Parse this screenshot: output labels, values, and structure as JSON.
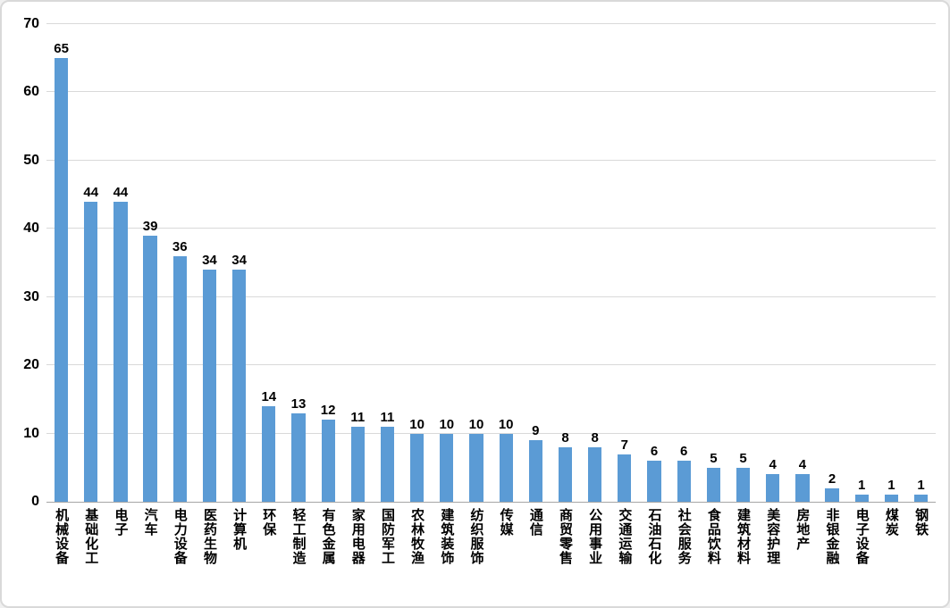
{
  "chart_data": {
    "type": "bar",
    "title": "",
    "xlabel": "",
    "ylabel": "",
    "categories": [
      "机械设备",
      "基础化工",
      "电子",
      "汽车",
      "电力设备",
      "医药生物",
      "计算机",
      "环保",
      "轻工制造",
      "有色金属",
      "家用电器",
      "国防军工",
      "农林牧渔",
      "建筑装饰",
      "纺织服饰",
      "传媒",
      "通信",
      "商贸零售",
      "公用事业",
      "交通运输",
      "石油石化",
      "社会服务",
      "食品饮料",
      "建筑材料",
      "美容护理",
      "房地产",
      "非银金融",
      "电子设备",
      "煤炭",
      "钢铁"
    ],
    "values": [
      65,
      44,
      44,
      39,
      36,
      34,
      34,
      14,
      13,
      12,
      11,
      11,
      10,
      10,
      10,
      10,
      9,
      8,
      8,
      7,
      6,
      6,
      5,
      5,
      4,
      4,
      2,
      1,
      1,
      1
    ],
    "ylim": [
      0,
      70
    ],
    "yticks": [
      0,
      10,
      20,
      30,
      40,
      50,
      60,
      70
    ],
    "grid": true,
    "legend": "none",
    "value_labels": true,
    "bar_color": "#5b9bd5",
    "gridline_color": "#d9d9d9",
    "axis_color": "#a6a6a6",
    "text_color": "#000000"
  }
}
